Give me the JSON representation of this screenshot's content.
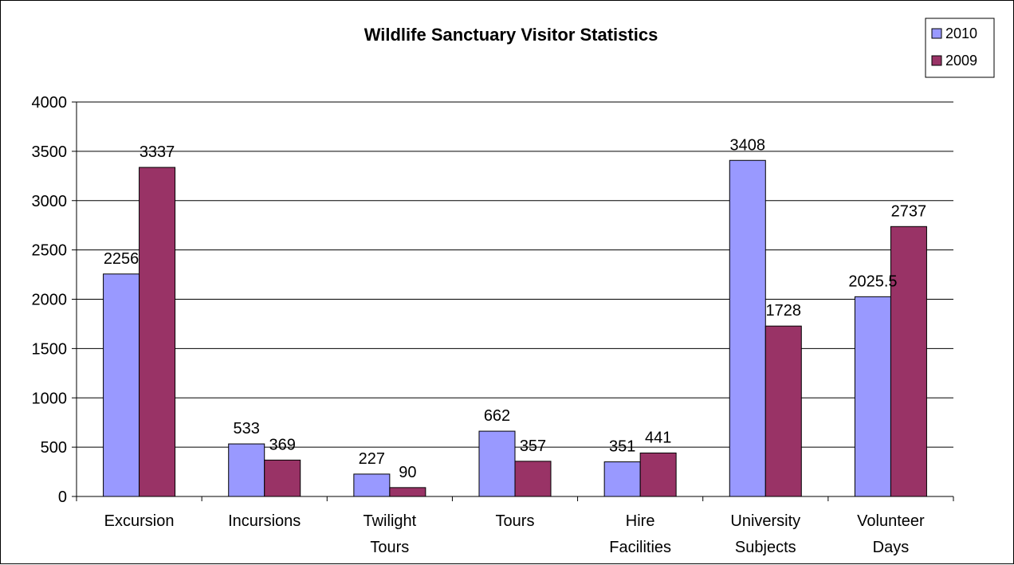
{
  "chart_data": {
    "type": "bar",
    "title": "Wildlife Sanctuary Visitor Statistics",
    "xlabel": "",
    "ylabel": "",
    "ylim": [
      0,
      4000
    ],
    "yticks": [
      0,
      500,
      1000,
      1500,
      2000,
      2500,
      3000,
      3500,
      4000
    ],
    "grid": true,
    "legend_position": "top-right",
    "categories": [
      [
        "Excursion"
      ],
      [
        "Incursions"
      ],
      [
        "Twilight",
        "Tours"
      ],
      [
        "Tours"
      ],
      [
        "Hire",
        "Facilities"
      ],
      [
        "University",
        "Subjects"
      ],
      [
        "Volunteer",
        "Days"
      ]
    ],
    "series": [
      {
        "name": "2010",
        "color": "#9999ff",
        "values": [
          2256,
          533,
          227,
          662,
          351,
          3408,
          2025.5
        ]
      },
      {
        "name": "2009",
        "color": "#993366",
        "values": [
          3337,
          369,
          90,
          357,
          441,
          1728,
          2737
        ]
      }
    ]
  }
}
